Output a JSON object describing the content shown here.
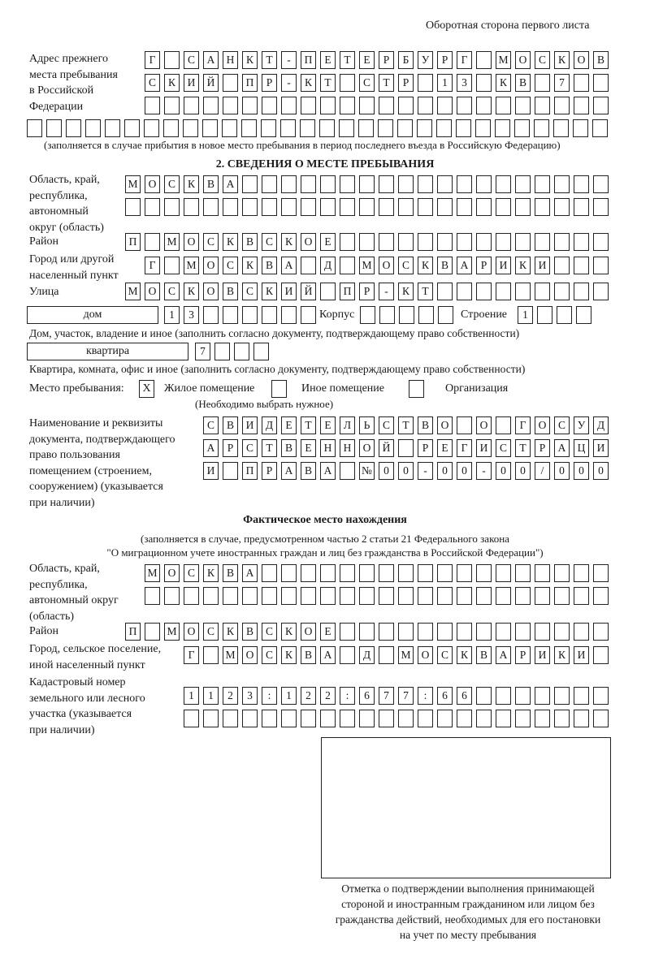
{
  "header": {
    "side_label": "Оборотная сторона первого листа"
  },
  "previous_address": {
    "label": [
      "Адрес прежнего",
      "места пребывания",
      "в Российской",
      "Федерации"
    ],
    "rows": [
      "Г САНКТ-ПЕТЕРБУРГ МОСКОВ",
      "СКИЙ ПР-КТ СТР 13 КВ 7",
      "",
      ""
    ],
    "note": "(заполняется в случае прибытия в новое место пребывания в период последнего въезда в Российскую Федерацию)"
  },
  "stay_place": {
    "title": "2. СВЕДЕНИЯ О МЕСТЕ ПРЕБЫВАНИЯ",
    "region_label": [
      "Область, край,",
      "республика,",
      "автономный",
      "округ (область)"
    ],
    "region_rows": [
      "МОСКВА",
      ""
    ],
    "district_label": "Район",
    "district": "П МОСКВСКОЕ",
    "city_label": [
      "Город или другой",
      "населенный пункт"
    ],
    "city": "Г МОСКВА Д МОСКВАРИКИ",
    "street_label": "Улица",
    "street": "МОСКОВСКИЙ ПР-КТ",
    "house_type": "дом",
    "house": "13",
    "korpus_label": "Корпус",
    "korpus": "",
    "building_label": "Строение",
    "building": "1",
    "house_note": "Дом, участок, владение и иное (заполнить согласно документу, подтверждающему право собственности)",
    "flat_type": "квартира",
    "flat": "7",
    "flat_note": "Квартира, комната, офис и иное (заполнить согласно документу, подтверждающему право собственности)",
    "place_label": "Место пребывания:",
    "options": [
      {
        "label": "Жилое помещение",
        "mark": "X"
      },
      {
        "label": "Иное помещение",
        "mark": ""
      },
      {
        "label": "Организация",
        "mark": ""
      }
    ],
    "choose_note": "(Необходимо выбрать нужное)",
    "doc_label": [
      "Наименование и реквизиты",
      "документа, подтверждающего",
      "право пользования",
      "помещением (строением,",
      "сооружением) (указывается",
      "при наличии)"
    ],
    "doc_rows": [
      "СВИДЕТЕЛЬСТВО О ГОСУД",
      "АРСТВЕННОЙ РЕГИСТРАЦИ",
      "И ПРАВА №00-00-00/000"
    ]
  },
  "actual_place": {
    "title": "Фактическое место нахождения",
    "note": [
      "(заполняется в случае, предусмотренном частью 2 статьи 21 Федерального закона",
      "\"О миграционном учете иностранных граждан и лиц без гражданства в Российской Федерации\")"
    ],
    "region_label": [
      "Область, край,",
      "республика,",
      "автономный округ",
      "(область)"
    ],
    "region_rows": [
      "МОСКВА",
      ""
    ],
    "district_label": "Район",
    "district": "П МОСКВСКОЕ",
    "city_label": [
      "Город, сельское поселение,",
      "иной населенный пункт"
    ],
    "city": "Г МОСКВА Д МОСКВАРИКИ",
    "cadastral_label": [
      "Кадастровый номер",
      "земельного или лесного",
      "участка (указывается",
      "при наличии)"
    ],
    "cadastral_rows": [
      "1123:122:677:66",
      ""
    ]
  },
  "confirmation": {
    "caption": [
      "Отметка о подтверждении выполнения принимающей",
      "стороной и иностранным гражданином или лицом без",
      "гражданства действий, необходимых для его постановки",
      "на учет по месту пребывания"
    ]
  }
}
